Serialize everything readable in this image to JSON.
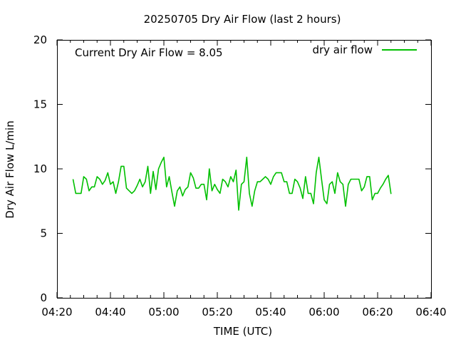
{
  "chart_data": {
    "type": "line",
    "title": "20250705 Dry Air Flow (last 2 hours)",
    "xlabel": "TIME (UTC)",
    "ylabel": "Dry Air Flow L/min",
    "annotation": "Current Dry Air Flow = 8.05",
    "legend_position": "top-right",
    "grid": false,
    "xlim": [
      "04:20",
      "06:40"
    ],
    "ylim": [
      0,
      20
    ],
    "x_ticks": [
      "04:20",
      "04:40",
      "05:00",
      "05:20",
      "05:40",
      "06:00",
      "06:20",
      "06:40"
    ],
    "y_ticks": [
      "0",
      "5",
      "10",
      "15",
      "20"
    ],
    "series": [
      {
        "name": "dry air flow",
        "color": "#00c000",
        "x": [
          "04:26",
          "04:27",
          "04:28",
          "04:29",
          "04:30",
          "04:31",
          "04:32",
          "04:33",
          "04:34",
          "04:35",
          "04:36",
          "04:37",
          "04:38",
          "04:39",
          "04:40",
          "04:41",
          "04:42",
          "04:43",
          "04:44",
          "04:45",
          "04:46",
          "04:47",
          "04:48",
          "04:49",
          "04:50",
          "04:51",
          "04:52",
          "04:53",
          "04:54",
          "04:55",
          "04:56",
          "04:57",
          "04:58",
          "04:59",
          "05:00",
          "05:01",
          "05:02",
          "05:03",
          "05:04",
          "05:05",
          "05:06",
          "05:07",
          "05:08",
          "05:09",
          "05:10",
          "05:11",
          "05:12",
          "05:13",
          "05:14",
          "05:15",
          "05:16",
          "05:17",
          "05:18",
          "05:19",
          "05:20",
          "05:21",
          "05:22",
          "05:23",
          "05:24",
          "05:25",
          "05:26",
          "05:27",
          "05:28",
          "05:29",
          "05:30",
          "05:31",
          "05:32",
          "05:33",
          "05:34",
          "05:35",
          "05:36",
          "05:37",
          "05:38",
          "05:39",
          "05:40",
          "05:41",
          "05:42",
          "05:43",
          "05:44",
          "05:45",
          "05:46",
          "05:47",
          "05:48",
          "05:49",
          "05:50",
          "05:51",
          "05:52",
          "05:53",
          "05:54",
          "05:55",
          "05:56",
          "05:57",
          "05:58",
          "05:59",
          "06:00",
          "06:01",
          "06:02",
          "06:03",
          "06:04",
          "06:05",
          "06:06",
          "06:07",
          "06:08",
          "06:09",
          "06:10",
          "06:11",
          "06:12",
          "06:13",
          "06:14",
          "06:15",
          "06:16",
          "06:17",
          "06:18",
          "06:19",
          "06:20",
          "06:21",
          "06:22",
          "06:23",
          "06:24",
          "06:25"
        ],
        "values": [
          9.2,
          8.1,
          8.1,
          8.1,
          9.4,
          9.2,
          8.3,
          8.6,
          8.6,
          9.4,
          9.2,
          8.8,
          9.1,
          9.7,
          8.8,
          9.0,
          8.1,
          9.0,
          10.2,
          10.2,
          8.5,
          8.3,
          8.1,
          8.3,
          8.7,
          9.2,
          8.6,
          9.0,
          10.2,
          8.1,
          9.8,
          8.4,
          10.0,
          10.5,
          10.9,
          8.6,
          9.4,
          8.2,
          7.1,
          8.3,
          8.6,
          7.9,
          8.4,
          8.6,
          9.7,
          9.3,
          8.5,
          8.5,
          8.8,
          8.8,
          7.6,
          10.0,
          8.3,
          8.8,
          8.4,
          8.1,
          9.2,
          9.0,
          8.6,
          9.4,
          9.0,
          9.9,
          6.8,
          8.8,
          9.0,
          10.9,
          8.1,
          7.1,
          8.3,
          9.0,
          9.0,
          9.2,
          9.4,
          9.2,
          8.8,
          9.4,
          9.7,
          9.7,
          9.7,
          9.0,
          9.0,
          8.1,
          8.1,
          9.2,
          9.0,
          8.5,
          7.7,
          9.4,
          8.1,
          8.1,
          7.3,
          9.7,
          10.9,
          9.2,
          7.6,
          7.3,
          8.8,
          9.0,
          8.1,
          9.7,
          9.0,
          8.8,
          7.1,
          8.8,
          9.2,
          9.2,
          9.2,
          9.2,
          8.3,
          8.6,
          9.4,
          9.4,
          7.6,
          8.1,
          8.1,
          8.5,
          8.8,
          9.2,
          9.5,
          8.05
        ]
      }
    ]
  }
}
